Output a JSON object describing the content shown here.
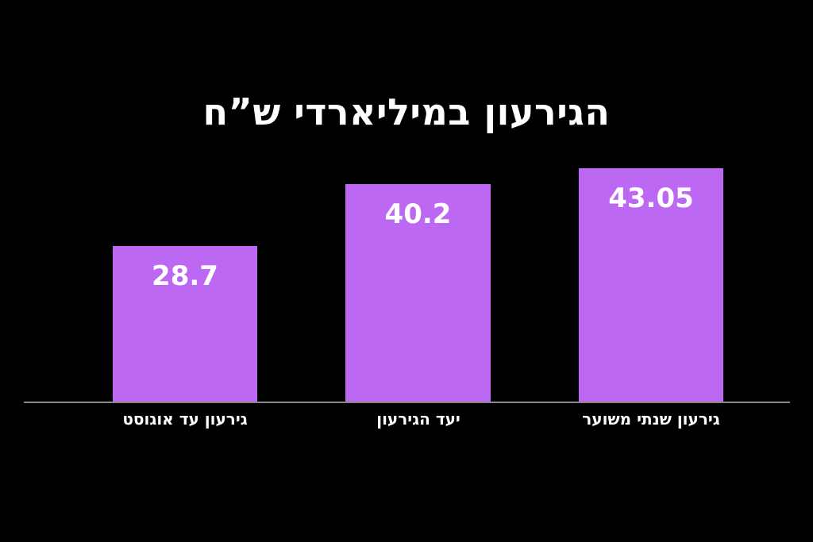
{
  "chart_data": {
    "type": "bar",
    "title": "הגירעון במיליארדי ש”ח",
    "categories": [
      "גירעון עד אוגוסט",
      "יעד הגירעון",
      "גירעון שנתי משוער"
    ],
    "values": [
      28.7,
      40.2,
      43.05
    ],
    "value_labels": [
      "28.7",
      "40.2",
      "43.05"
    ],
    "series_name": "הגירעון במיליארדי ש”ח",
    "xlabel": "",
    "ylabel": "",
    "ylim": [
      0,
      43.05
    ],
    "grid": false,
    "legend": false,
    "direction": "rtl",
    "colors": {
      "background": "#000000",
      "bar": "#bd68f3",
      "title_text": "#ffffff",
      "value_text": "#ffffff",
      "category_text": "#ffffff",
      "axis_line": "#888888"
    }
  }
}
